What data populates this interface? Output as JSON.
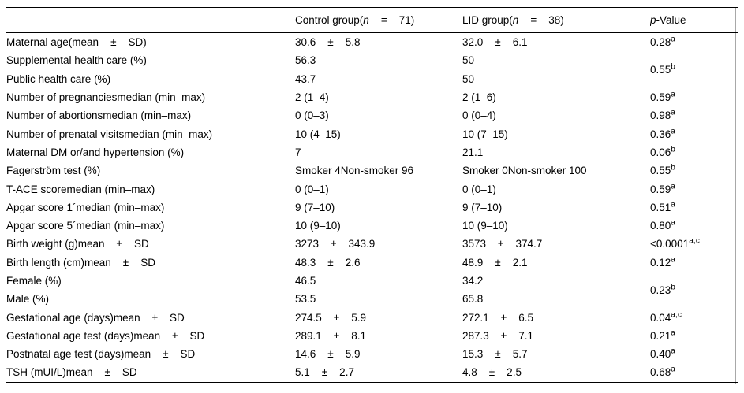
{
  "header": {
    "control": {
      "pre": "Control group(",
      "var": "n",
      "post": "    =    71)"
    },
    "lid": {
      "pre": "LID group(",
      "var": "n",
      "post": "    =    38)"
    },
    "p": {
      "var": "p",
      "post": "-Value"
    }
  },
  "rows": [
    {
      "label": "Maternal age(mean    ±    SD)",
      "control": "30.6    ±    5.8",
      "lid": "32.0    ±    6.1",
      "p": {
        "v": "0.28",
        "s": "a"
      }
    },
    {
      "label": "Supplemental health care (%)",
      "control": "56.3",
      "lid": "50",
      "p": {
        "v": "0.55",
        "s": "b"
      }
    },
    {
      "label": "Public health care (%)",
      "control": "43.7",
      "lid": "50"
    },
    {
      "label": "Number of pregnanciesmedian (min–max)",
      "control": "2 (1–4)",
      "lid": "2 (1–6)",
      "p": {
        "v": "0.59",
        "s": "a"
      }
    },
    {
      "label": "Number of abortionsmedian (min–max)",
      "control": "0 (0–3)",
      "lid": "0 (0–4)",
      "p": {
        "v": "0.98",
        "s": "a"
      }
    },
    {
      "label": "Number of prenatal visitsmedian (min–max)",
      "control": "10 (4–15)",
      "lid": "10 (7–15)",
      "p": {
        "v": "0.36",
        "s": "a"
      }
    },
    {
      "label": "Maternal DM or/and hypertension (%)",
      "control": "7",
      "lid": "21.1",
      "p": {
        "v": "0.06",
        "s": "b"
      }
    },
    {
      "label": "Fagerström test (%)",
      "control": "Smoker 4Non-smoker 96",
      "lid": "Smoker 0Non-smoker 100",
      "p": {
        "v": "0.55",
        "s": "b"
      }
    },
    {
      "label": "T-ACE scoremedian (min–max)",
      "control": "0 (0–1)",
      "lid": "0 (0–1)",
      "p": {
        "v": "0.59",
        "s": "a"
      }
    },
    {
      "label": "Apgar score 1´median (min–max)",
      "control": "9 (7–10)",
      "lid": "9 (7–10)",
      "p": {
        "v": "0.51",
        "s": "a"
      }
    },
    {
      "label": "Apgar score 5´median (min–max)",
      "control": "10 (9–10)",
      "lid": "10 (9–10)",
      "p": {
        "v": "0.80",
        "s": "a"
      }
    },
    {
      "label": "Birth weight (g)mean    ±    SD",
      "control": "3273    ±    343.9",
      "lid": "3573    ±    374.7",
      "p": {
        "v": "<0.0001",
        "s": "a,c"
      }
    },
    {
      "label": "Birth length (cm)mean    ±    SD",
      "control": "48.3    ±    2.6",
      "lid": "48.9    ±    2.1",
      "p": {
        "v": "0.12",
        "s": "a"
      }
    },
    {
      "label": "Female (%)",
      "control": "46.5",
      "lid": "34.2",
      "p": {
        "v": "0.23",
        "s": "b"
      }
    },
    {
      "label": "Male (%)",
      "control": "53.5",
      "lid": "65.8"
    },
    {
      "label": "Gestational age (days)mean    ±    SD",
      "control": "274.5    ±    5.9",
      "lid": "272.1    ±    6.5",
      "p": {
        "v": "0.04",
        "s": "a,c"
      }
    },
    {
      "label": "Gestational age test (days)mean    ±    SD",
      "control": "289.1    ±    8.1",
      "lid": "287.3    ±    7.1",
      "p": {
        "v": "0.21",
        "s": "a"
      }
    },
    {
      "label": "Postnatal age test (days)mean    ±    SD",
      "control": "14.6    ±    5.9",
      "lid": "15.3    ±    5.7",
      "p": {
        "v": "0.40",
        "s": "a"
      }
    },
    {
      "label": "TSH (mUI/L)mean    ±    SD",
      "control": "5.1    ±    2.7",
      "lid": "4.8    ±    2.5",
      "p": {
        "v": "0.68",
        "s": "a"
      }
    }
  ]
}
